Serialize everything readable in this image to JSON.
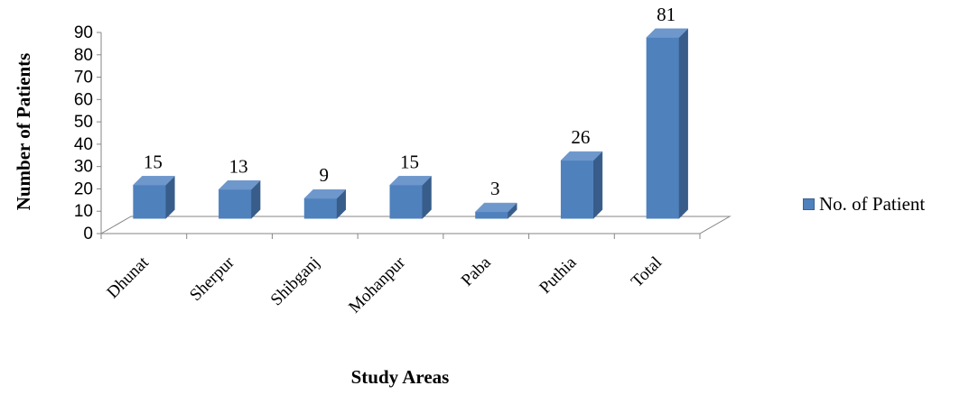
{
  "chart_data": {
    "type": "bar",
    "categories": [
      "Dhunat",
      "Sherpur",
      "Shibganj",
      "Mohanpur",
      "Paba",
      "Puthia",
      "Total"
    ],
    "series": [
      {
        "name": "No. of Patient",
        "values": [
          15,
          13,
          9,
          15,
          3,
          26,
          81
        ]
      }
    ],
    "title": "",
    "xlabel": "Study Areas",
    "ylabel": "Number of Patients",
    "ylim": [
      0,
      90
    ],
    "yticks": [
      0,
      10,
      20,
      30,
      40,
      50,
      60,
      70,
      80,
      90
    ],
    "data_labels": [
      "15",
      "13",
      "9",
      "15",
      "3",
      "26",
      "81"
    ],
    "grid": false,
    "three_d": true,
    "legend_position": "right",
    "colors": {
      "front": "#4f81bd",
      "side": "#385d8a",
      "top": "#6e97cc"
    }
  }
}
